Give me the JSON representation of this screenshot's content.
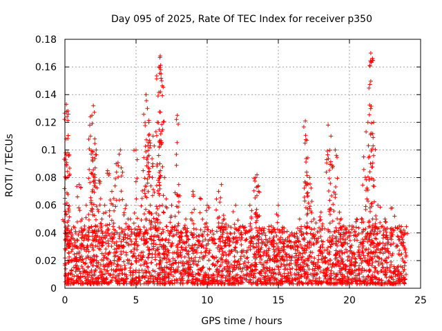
{
  "chart_data": {
    "type": "scatter",
    "title": "Day 095 of 2025, Rate Of TEC Index for receiver p350",
    "xlabel": "GPS time / hours",
    "ylabel": "ROTI / TECUs",
    "xlim": [
      0,
      25
    ],
    "ylim": [
      0,
      0.18
    ],
    "x_ticks": [
      "0",
      "5",
      "10",
      "15",
      "20",
      "25"
    ],
    "y_ticks": [
      "0",
      "0.02",
      "0.04",
      "0.06",
      "0.08",
      "0.1",
      "0.12",
      "0.14",
      "0.16",
      "0.18"
    ],
    "grid": true,
    "marker": "plus",
    "color": "#ff0000",
    "series": [
      {
        "x": [
          0.0,
          0.1,
          0.15,
          0.2,
          0.25,
          0.3,
          0.5,
          0.8,
          1.0,
          1.2,
          1.5,
          1.8,
          1.9,
          2.0,
          2.1,
          2.2,
          2.4,
          2.6,
          2.8,
          3.0,
          3.3,
          3.6,
          3.9,
          4.0,
          4.3,
          4.6,
          5.0,
          5.2,
          5.5,
          5.7,
          5.8,
          5.9,
          6.0,
          6.2,
          6.5,
          6.6,
          6.7,
          6.8,
          7.0,
          7.5,
          7.9,
          8.0,
          8.2,
          8.5,
          9.0,
          9.5,
          10.0,
          10.5,
          10.8,
          11.0,
          11.2,
          11.5,
          12.0,
          12.5,
          13.0,
          13.4,
          13.5,
          13.6,
          14.0,
          14.5,
          15.0,
          15.5,
          16.0,
          16.5,
          16.9,
          17.0,
          17.2,
          17.5,
          18.0,
          18.5,
          18.7,
          19.0,
          19.3,
          19.6,
          20.0,
          20.5,
          21.0,
          21.3,
          21.5,
          21.6,
          21.7,
          22.0,
          22.5,
          23.0,
          23.5,
          23.9
        ],
        "y": [
          0.065,
          0.133,
          0.124,
          0.098,
          0.045,
          0.03,
          0.02,
          0.03,
          0.075,
          0.05,
          0.06,
          0.11,
          0.125,
          0.132,
          0.108,
          0.1,
          0.078,
          0.05,
          0.06,
          0.085,
          0.07,
          0.09,
          0.1,
          0.03,
          0.06,
          0.05,
          0.1,
          0.04,
          0.085,
          0.14,
          0.13,
          0.12,
          0.105,
          0.11,
          0.12,
          0.16,
          0.168,
          0.15,
          0.08,
          0.06,
          0.125,
          0.075,
          0.04,
          0.05,
          0.07,
          0.065,
          0.06,
          0.035,
          0.07,
          0.075,
          0.05,
          0.045,
          0.06,
          0.045,
          0.06,
          0.08,
          0.082,
          0.07,
          0.04,
          0.045,
          0.06,
          0.035,
          0.03,
          0.05,
          0.121,
          0.107,
          0.08,
          0.05,
          0.055,
          0.118,
          0.11,
          0.1,
          0.055,
          0.045,
          0.045,
          0.05,
          0.095,
          0.12,
          0.17,
          0.165,
          0.12,
          0.06,
          0.05,
          0.058,
          0.045,
          0.04
        ]
      }
    ],
    "baseline_band": {
      "x_range": [
        0,
        24
      ],
      "y_range": [
        0.003,
        0.045
      ],
      "note": ""
    }
  }
}
